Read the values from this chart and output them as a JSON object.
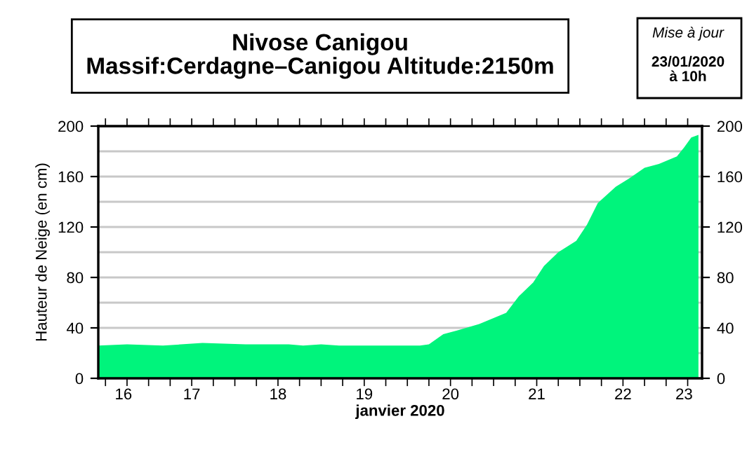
{
  "chart_data": {
    "type": "area",
    "title": "Nivose Canigou",
    "subtitle": "Massif:Cerdagne–Canigou Altitude:2150m",
    "annotations": [
      "Mise à jour",
      "23/01/2020\nà 10h"
    ],
    "xlabel": "janvier 2020",
    "ylabel": "Hauteur de Neige (en cm)",
    "series": [
      {
        "color": "#00f47c",
        "x": [
          "2020-01-16T10:00",
          "2020-01-16T18:00",
          "2020-01-17T04:00",
          "2020-01-17T15:00",
          "2020-01-18T03:00",
          "2020-01-18T15:00",
          "2020-01-18T19:00",
          "2020-01-19T00:00",
          "2020-01-19T05:00",
          "2020-01-20T03:30",
          "2020-01-20T06:00",
          "2020-01-20T10:00",
          "2020-01-20T14:00",
          "2020-01-20T20:00",
          "2020-01-21T03:30",
          "2020-01-21T07:00",
          "2020-01-21T11:00",
          "2020-01-21T14:00",
          "2020-01-21T18:00",
          "2020-01-21T23:00",
          "2020-01-22T02:00",
          "2020-01-22T05:00",
          "2020-01-22T10:00",
          "2020-01-22T14:00",
          "2020-01-22T18:00",
          "2020-01-22T22:00",
          "2020-01-23T03:00",
          "2020-01-23T05:00",
          "2020-01-23T07:00",
          "2020-01-23T09:00"
        ],
        "values": [
          26,
          27,
          26,
          28,
          27,
          27,
          26,
          27,
          26,
          26,
          27,
          35,
          38,
          43,
          52,
          65,
          76,
          89,
          100,
          109,
          122,
          139,
          152,
          159,
          167,
          170,
          176,
          183,
          191,
          193
        ]
      }
    ],
    "xlim": [
      "2020-01-16T10:00",
      "2020-01-23T10:00"
    ],
    "xticks": [
      {
        "value": "2020-01-16T12:00",
        "label": null
      },
      {
        "value": "2020-01-16T18:00",
        "label": null
      },
      {
        "value": "2020-01-17T00:00",
        "label": null
      },
      {
        "value": "2020-01-17T06:00",
        "label": null
      },
      {
        "value": "2020-01-17T12:00",
        "label": null
      },
      {
        "value": "2020-01-17T18:00",
        "label": null
      },
      {
        "value": "2020-01-18T00:00",
        "label": null
      },
      {
        "value": "2020-01-18T06:00",
        "label": null
      },
      {
        "value": "2020-01-18T12:00",
        "label": null
      },
      {
        "value": "2020-01-18T18:00",
        "label": null
      },
      {
        "value": "2020-01-19T00:00",
        "label": null
      },
      {
        "value": "2020-01-19T06:00",
        "label": null
      },
      {
        "value": "2020-01-19T12:00",
        "label": null
      },
      {
        "value": "2020-01-19T18:00",
        "label": null
      },
      {
        "value": "2020-01-20T00:00",
        "label": null
      },
      {
        "value": "2020-01-20T06:00",
        "label": null
      },
      {
        "value": "2020-01-20T12:00",
        "label": null
      },
      {
        "value": "2020-01-20T18:00",
        "label": null
      },
      {
        "value": "2020-01-21T00:00",
        "label": null
      },
      {
        "value": "2020-01-21T06:00",
        "label": null
      },
      {
        "value": "2020-01-21T12:00",
        "label": null
      },
      {
        "value": "2020-01-21T18:00",
        "label": null
      },
      {
        "value": "2020-01-22T00:00",
        "label": null
      },
      {
        "value": "2020-01-22T06:00",
        "label": null
      },
      {
        "value": "2020-01-22T12:00",
        "label": null
      },
      {
        "value": "2020-01-22T18:00",
        "label": null
      },
      {
        "value": "2020-01-23T00:00",
        "label": null
      },
      {
        "value": "2020-01-23T06:00",
        "label": null
      },
      {
        "value": "2020-01-16T17:00",
        "label": "16"
      },
      {
        "value": "2020-01-17T12:00",
        "label": "17"
      },
      {
        "value": "2020-01-18T12:00",
        "label": "18"
      },
      {
        "value": "2020-01-19T12:00",
        "label": "19"
      },
      {
        "value": "2020-01-20T12:00",
        "label": "20"
      },
      {
        "value": "2020-01-21T12:00",
        "label": "21"
      },
      {
        "value": "2020-01-22T12:00",
        "label": "22"
      },
      {
        "value": "2020-01-23T05:00",
        "label": "23"
      }
    ],
    "ylim": [
      0,
      200
    ],
    "yticks": [
      0,
      {
        "value": 20,
        "label": null
      },
      40,
      {
        "value": 60,
        "label": null
      },
      80,
      {
        "value": 100,
        "label": null
      },
      120,
      {
        "value": 140,
        "label": null
      },
      160,
      {
        "value": 180,
        "label": null
      },
      200
    ],
    "y2lim": [
      0,
      200
    ],
    "y2ticks": [
      0,
      40,
      80,
      120,
      160,
      200
    ],
    "grid": "y",
    "legend": false
  }
}
